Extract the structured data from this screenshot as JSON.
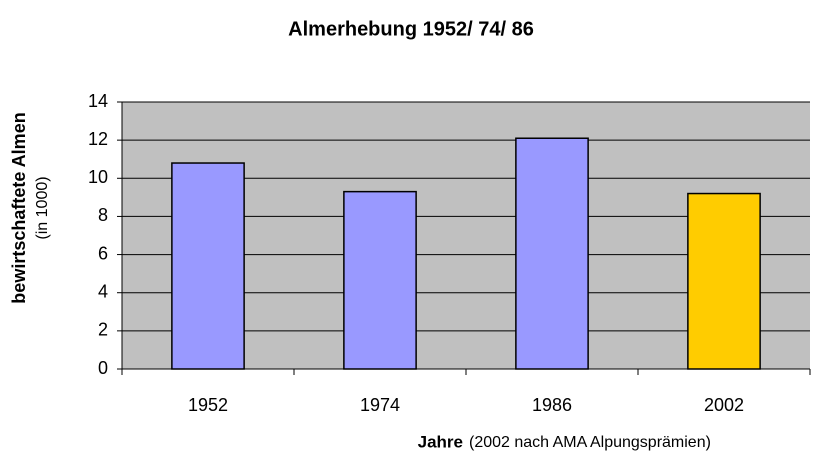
{
  "chart_data": {
    "type": "bar",
    "title": "Almerhebung 1952/ 74/ 86",
    "ylabel": "bewirtschaftete Almen",
    "ylabel_note": "(in 1000)",
    "xlabel": "Jahre",
    "xlabel_note": "(2002 nach AMA Alpungsprämien)",
    "categories": [
      "1952",
      "1974",
      "1986",
      "2002"
    ],
    "values": [
      10.8,
      9.3,
      12.1,
      9.2
    ],
    "colors": [
      "#9999ff",
      "#9999ff",
      "#9999ff",
      "#ffcc00"
    ],
    "ylim": [
      0,
      14
    ],
    "yticks": [
      0,
      2,
      4,
      6,
      8,
      10,
      12,
      14
    ],
    "grid": true
  }
}
